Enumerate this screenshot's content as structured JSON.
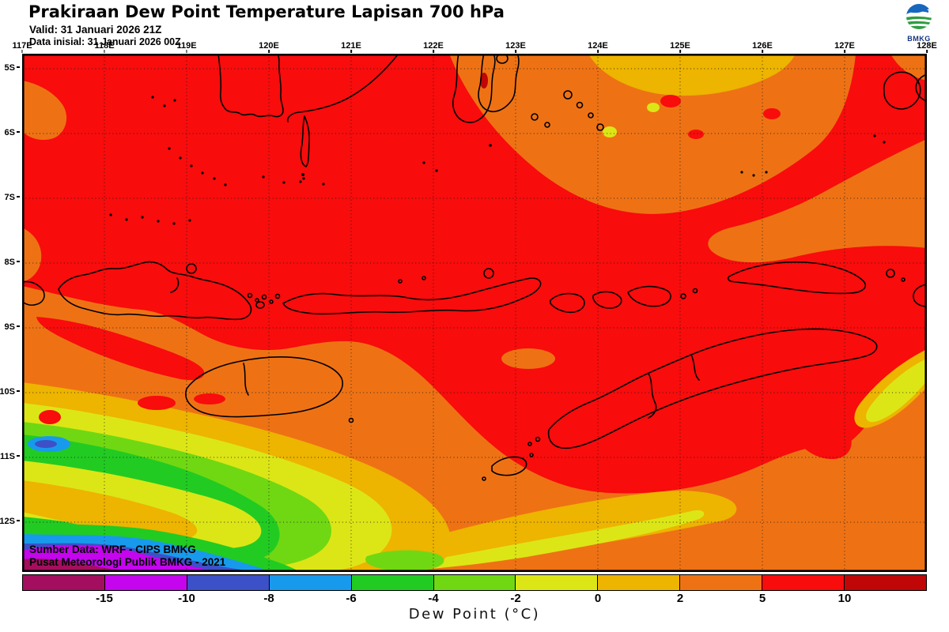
{
  "header": {
    "title": "Prakiraan Dew Point Temperature Lapisan 700 hPa",
    "valid_line": "Valid: 31 Januari 2026 21Z",
    "init_line": "Data inisial: 31 Januari 2026 00Z",
    "logo_label": "BMKG"
  },
  "map": {
    "lon_labels": [
      "117E",
      "118E",
      "119E",
      "120E",
      "121E",
      "122E",
      "123E",
      "124E",
      "125E",
      "126E",
      "127E",
      "128E"
    ],
    "lat_labels": [
      "5S",
      "6S",
      "7S",
      "8S",
      "9S",
      "10S",
      "11S",
      "12S"
    ],
    "source_line1": "Sumber Data: WRF - CIPS BMKG",
    "source_line2": "Pusat Meteorologi Publik BMKG - 2021"
  },
  "colorbar": {
    "label": "Dew Point (°C)",
    "ticks": [
      "-15",
      "-10",
      "-8",
      "-6",
      "-4",
      "-2",
      "0",
      "2",
      "5",
      "10"
    ],
    "colors": [
      "#A40E5E",
      "#C405EE",
      "#3C50C8",
      "#189AEC",
      "#22CB22",
      "#70D812",
      "#DCE616",
      "#EDB400",
      "#EE7214",
      "#F80C0C",
      "#C00606"
    ]
  },
  "chart_data": {
    "type": "heatmap",
    "title": "Prakiraan Dew Point Temperature Lapisan 700 hPa",
    "variable": "Dew Point Temperature",
    "level": "700 hPa",
    "units": "°C",
    "x_ticks": [
      "117E",
      "118E",
      "119E",
      "120E",
      "121E",
      "122E",
      "123E",
      "124E",
      "125E",
      "126E",
      "127E",
      "128E"
    ],
    "y_ticks": [
      "5S",
      "6S",
      "7S",
      "8S",
      "9S",
      "10S",
      "11S",
      "12S"
    ],
    "colorbar_levels": [
      -15,
      -10,
      -8,
      -6,
      -4,
      -2,
      0,
      2,
      5,
      10
    ],
    "colorbar_label": "Dew Point (°C)",
    "legend_position": "bottom",
    "grid": "dotted, 1-degree spacing",
    "field_summary": "Dew point mostly 5-10°C (red) across the domain; 2-5°C (orange) over the north-central area with 0-2°C gold pocket at the northern edge near 123-126E, orange/gold/yellow bands over the southeast near Timor; values decrease southwestward through yellow, green, cyan and blue to below -15°C (magenta) in the far southwest corner."
  }
}
